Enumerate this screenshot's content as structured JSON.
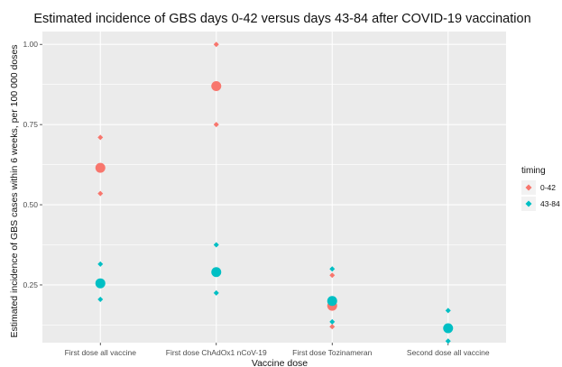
{
  "chart_data": {
    "type": "scatter",
    "title": "Estimated incidence of GBS days 0-42 versus days 43-84 after COVID-19 vaccination",
    "xlabel": "Vaccine dose",
    "ylabel": "Estimated incidence of GBS cases within 6 weeks, per 100 000 doses",
    "categories": [
      "First dose all vaccine",
      "First dose ChAdOx1 nCoV-19",
      "First dose Tozinameran",
      "Second dose all vaccine"
    ],
    "ylim": [
      0.07,
      1.04
    ],
    "y_ticks": [
      "0.25",
      "0.50",
      "0.75",
      "1.00"
    ],
    "grid": true,
    "legend": {
      "title": "timing",
      "position": "right"
    },
    "series": [
      {
        "name": "0-42",
        "color": "#F8766D",
        "estimate": [
          0.615,
          0.87,
          0.185,
          null
        ],
        "lower": [
          0.535,
          0.75,
          0.12,
          null
        ],
        "upper": [
          0.71,
          1.0,
          0.28,
          null
        ]
      },
      {
        "name": "43-84",
        "color": "#00BFC4",
        "estimate": [
          0.255,
          0.29,
          0.2,
          0.115
        ],
        "lower": [
          0.205,
          0.225,
          0.135,
          0.075
        ],
        "upper": [
          0.315,
          0.375,
          0.3,
          0.17
        ]
      }
    ]
  }
}
